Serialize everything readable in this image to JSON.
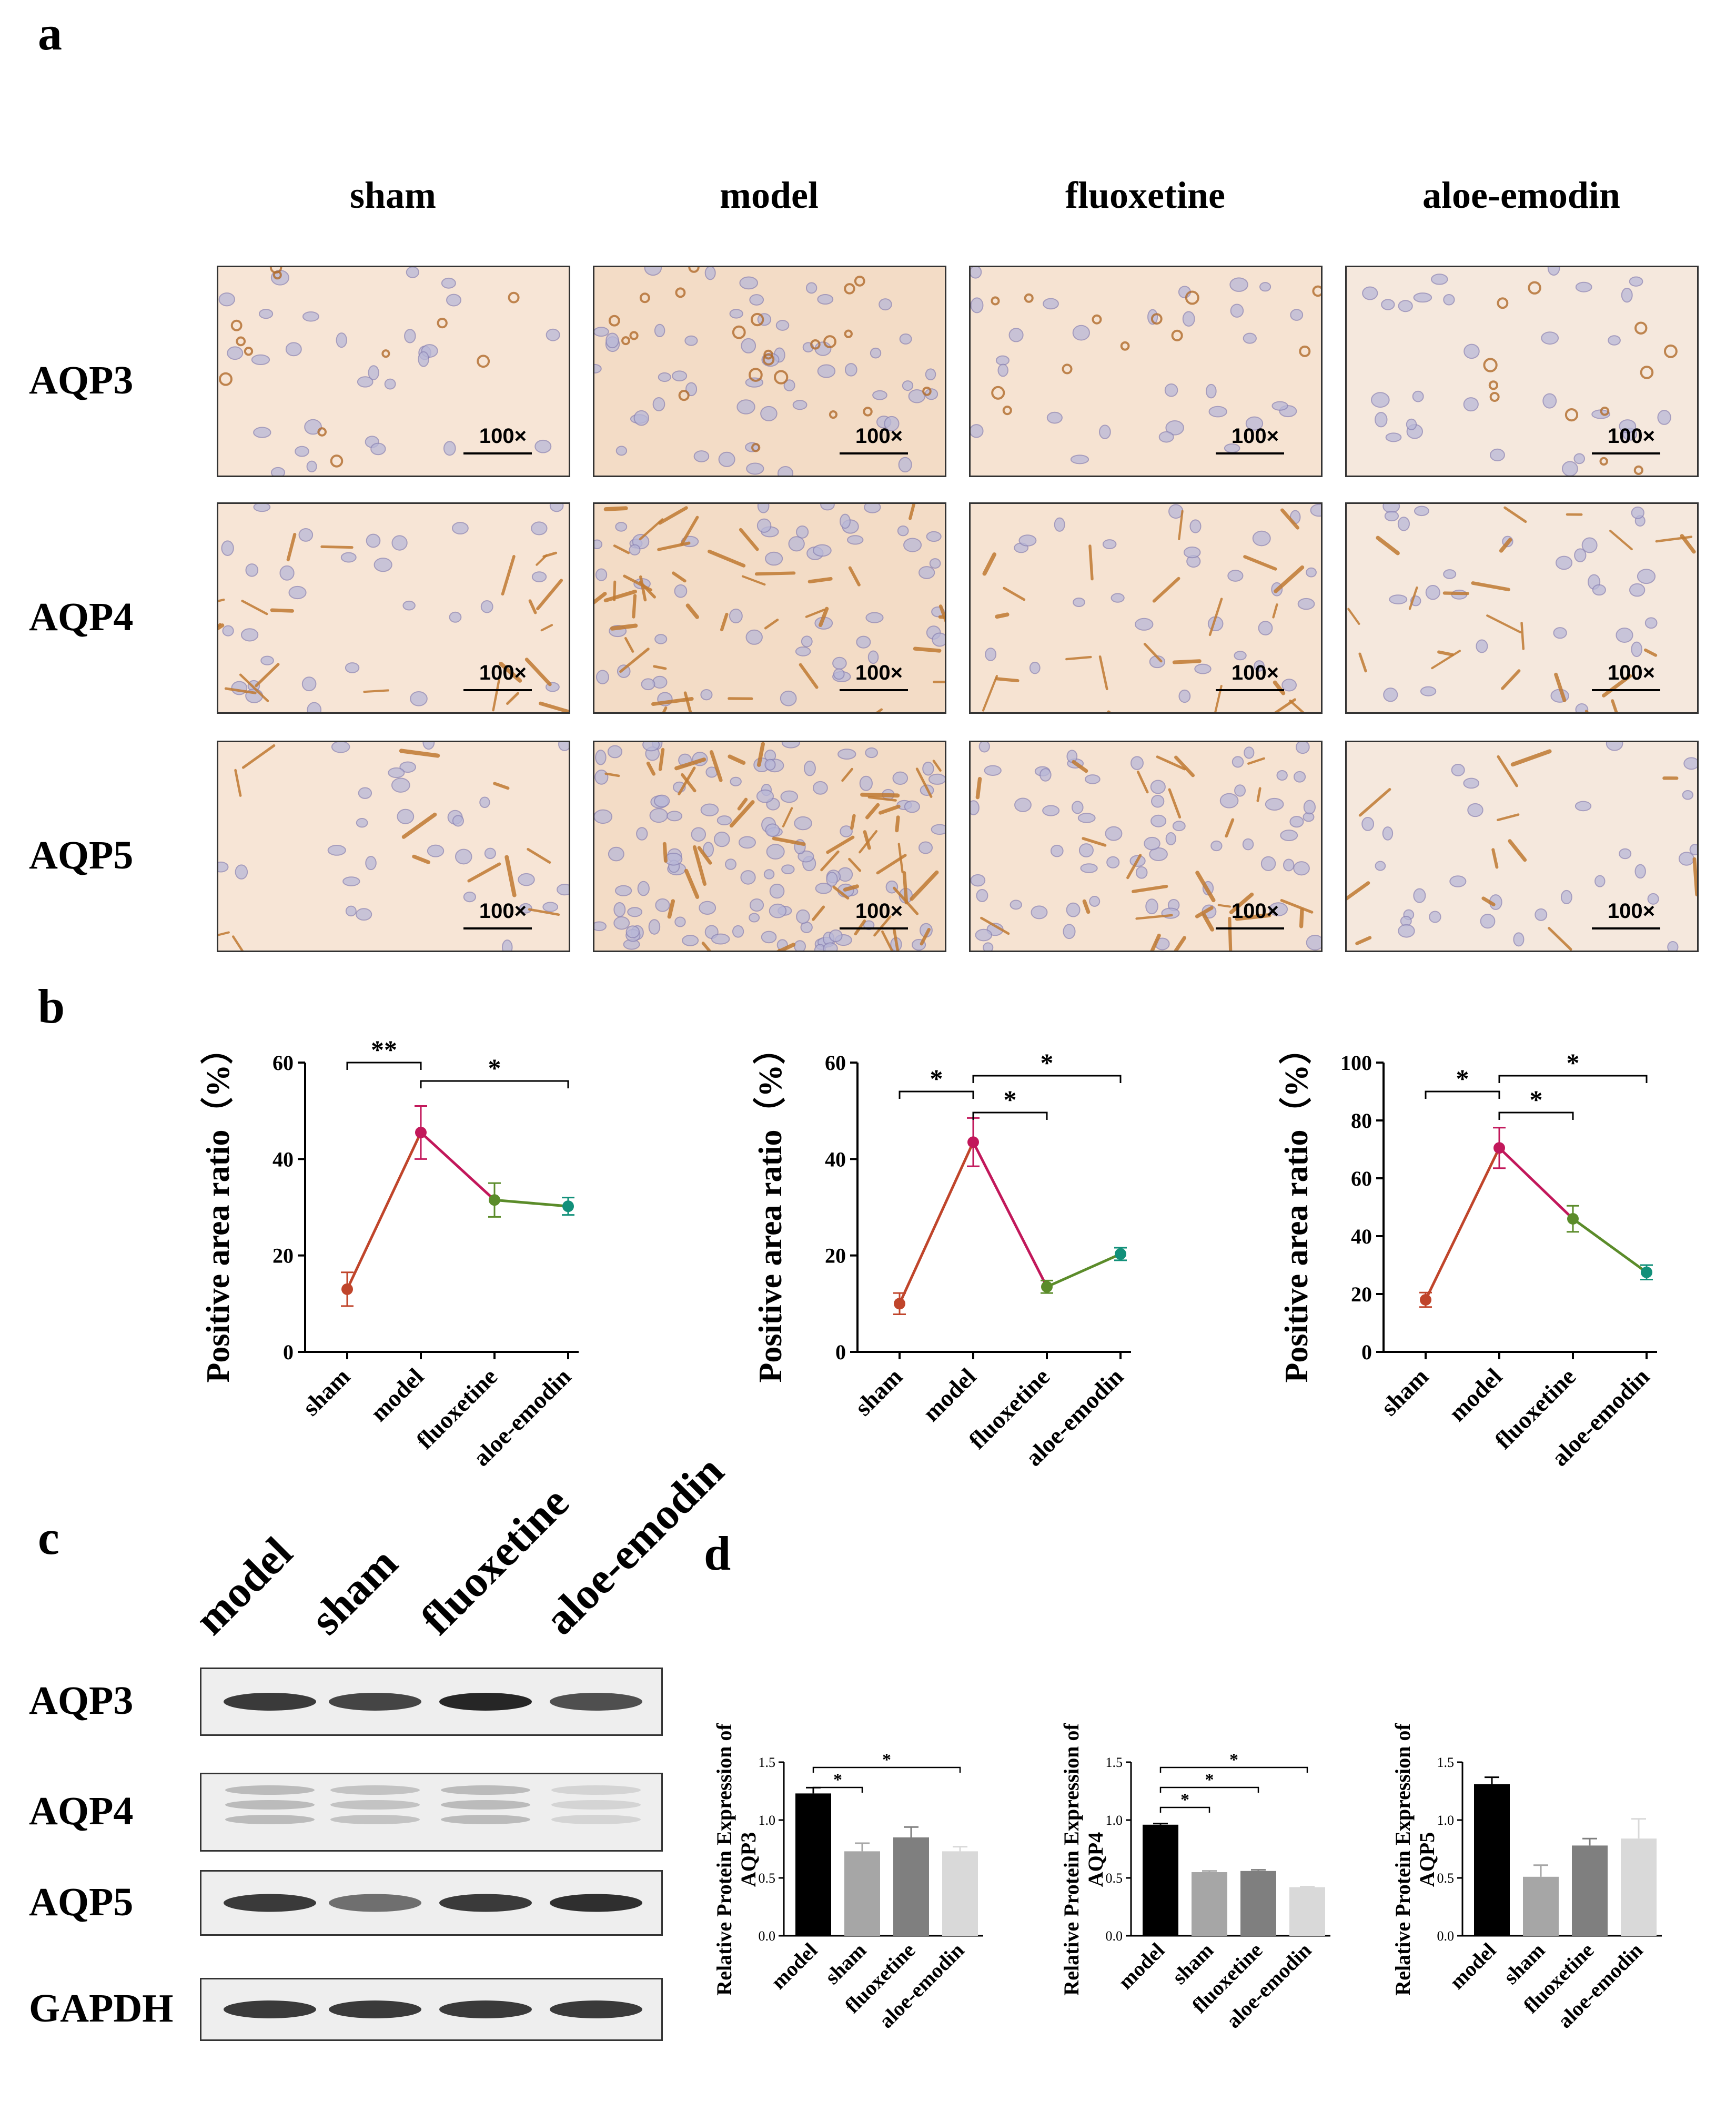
{
  "panels": {
    "a": "a",
    "b": "b",
    "c": "c",
    "d": "d"
  },
  "ihc": {
    "columns": [
      "sham",
      "model",
      "fluoxetine",
      "aloe-emodin"
    ],
    "rows": [
      "AQP3",
      "AQP4",
      "AQP5"
    ],
    "magnification": "100×"
  },
  "colors": {
    "sham": "#c0452b",
    "model": "#c2185b",
    "fluoxetine": "#5b8c2a",
    "aloe_emodin": "#12907a",
    "bar_model": "#000000",
    "bar_sham": "#a6a6a6",
    "bar_fluoxetine": "#7f7f7f",
    "bar_aloe": "#d9d9d9"
  },
  "western": {
    "lanes": [
      "model",
      "sham",
      "fluoxetine",
      "aloe-emodin"
    ],
    "blots": [
      "AQP3",
      "AQP4",
      "AQP5",
      "GAPDH"
    ]
  },
  "chart_data": [
    {
      "type": "line",
      "categories": [
        "sham",
        "model",
        "fluoxetine",
        "aloe-emodin"
      ],
      "values": [
        13,
        45.5,
        31.5,
        30.2
      ],
      "errors": [
        3.5,
        5.5,
        3.5,
        1.8
      ],
      "ylabel": "Positive area ratio（%）",
      "ylim": [
        0,
        60
      ],
      "yticks": [
        "0",
        "20",
        "40",
        "60"
      ],
      "significance": [
        {
          "from": "sham",
          "to": "model",
          "label": "**"
        },
        {
          "from": "model",
          "to": "aloe-emodin",
          "label": "*"
        }
      ]
    },
    {
      "type": "line",
      "categories": [
        "sham",
        "model",
        "fluoxetine",
        "aloe-emodin"
      ],
      "values": [
        10,
        43.5,
        13.5,
        20.3
      ],
      "errors": [
        2.2,
        5,
        1.3,
        1.3
      ],
      "ylabel": "Positive area ratio（%）",
      "ylim": [
        0,
        60
      ],
      "yticks": [
        "0",
        "20",
        "40",
        "60"
      ],
      "significance": [
        {
          "from": "sham",
          "to": "model",
          "label": "*"
        },
        {
          "from": "model",
          "to": "fluoxetine",
          "label": "*"
        },
        {
          "from": "model",
          "to": "aloe-emodin",
          "label": "*"
        }
      ]
    },
    {
      "type": "line",
      "categories": [
        "sham",
        "model",
        "fluoxetine",
        "aloe-emodin"
      ],
      "values": [
        18,
        70.5,
        46,
        27.5
      ],
      "errors": [
        2.5,
        7,
        4.5,
        2.5
      ],
      "ylabel": "Positive area ratio（%）",
      "ylim": [
        0,
        100
      ],
      "yticks": [
        "0",
        "20",
        "40",
        "60",
        "80",
        "100"
      ],
      "significance": [
        {
          "from": "sham",
          "to": "model",
          "label": "*"
        },
        {
          "from": "model",
          "to": "fluoxetine",
          "label": "*"
        },
        {
          "from": "model",
          "to": "aloe-emodin",
          "label": "*"
        }
      ]
    },
    {
      "type": "bar",
      "categories": [
        "model",
        "sham",
        "fluoxetine",
        "aloe-emodin"
      ],
      "values": [
        1.23,
        0.73,
        0.85,
        0.73
      ],
      "errors": [
        0.05,
        0.07,
        0.09,
        0.04
      ],
      "ylabel": "Relative Protein Expression of AQP3",
      "ylim": [
        0,
        1.5
      ],
      "yticks": [
        "0.0",
        "0.5",
        "1.0",
        "1.5"
      ],
      "significance": [
        {
          "from": "model",
          "to": "sham",
          "label": "*"
        },
        {
          "from": "model",
          "to": "aloe-emodin",
          "label": "*"
        }
      ]
    },
    {
      "type": "bar",
      "categories": [
        "model",
        "sham",
        "fluoxetine",
        "aloe-emodin"
      ],
      "values": [
        0.96,
        0.55,
        0.56,
        0.42
      ],
      "errors": [
        0.01,
        0.01,
        0.01,
        0.005
      ],
      "ylabel": "Relative Protein Expression of AQP4",
      "ylim": [
        0,
        1.5
      ],
      "yticks": [
        "0.0",
        "0.5",
        "1.0",
        "1.5"
      ],
      "significance": [
        {
          "from": "model",
          "to": "sham",
          "label": "*"
        },
        {
          "from": "model",
          "to": "fluoxetine",
          "label": "*"
        },
        {
          "from": "model",
          "to": "aloe-emodin",
          "label": "*"
        }
      ]
    },
    {
      "type": "bar",
      "categories": [
        "model",
        "sham",
        "fluoxetine",
        "aloe-emodin"
      ],
      "values": [
        1.31,
        0.51,
        0.78,
        0.84
      ],
      "errors": [
        0.06,
        0.1,
        0.06,
        0.17
      ],
      "ylabel": "Relative Protein Expression of AQP5",
      "ylim": [
        0,
        1.5
      ],
      "yticks": [
        "0.0",
        "0.5",
        "1.0",
        "1.5"
      ],
      "significance": []
    }
  ]
}
